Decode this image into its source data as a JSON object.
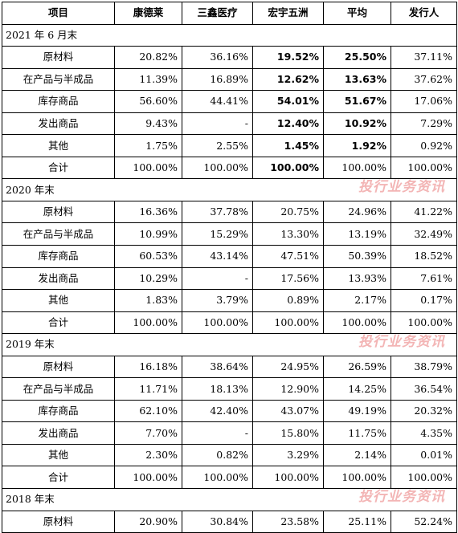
{
  "header": [
    "项目",
    "康德莱",
    "三鑫医疗",
    "宏宇五洲",
    "平均",
    "发行人"
  ],
  "watermark": "投行业务资讯",
  "sections": [
    {
      "title": "2021 年 6 月末",
      "watermark": false,
      "rows": [
        {
          "name": "原材料",
          "values": [
            "20.82%",
            "36.16%",
            "19.52%",
            "25.50%",
            "37.11%"
          ],
          "bold": [
            false,
            false,
            true,
            true,
            false
          ]
        },
        {
          "name": "在产品与半成品",
          "values": [
            "11.39%",
            "16.89%",
            "12.62%",
            "13.63%",
            "37.62%"
          ],
          "bold": [
            false,
            false,
            true,
            true,
            false
          ]
        },
        {
          "name": "库存商品",
          "values": [
            "56.60%",
            "44.41%",
            "54.01%",
            "51.67%",
            "17.06%"
          ],
          "bold": [
            false,
            false,
            true,
            true,
            false
          ]
        },
        {
          "name": "发出商品",
          "values": [
            "9.43%",
            "-",
            "12.40%",
            "10.92%",
            "7.29%"
          ],
          "bold": [
            false,
            false,
            true,
            true,
            false
          ]
        },
        {
          "name": "其他",
          "values": [
            "1.75%",
            "2.55%",
            "1.45%",
            "1.92%",
            "0.92%"
          ],
          "bold": [
            false,
            false,
            true,
            true,
            false
          ]
        },
        {
          "name": "合计",
          "values": [
            "100.00%",
            "100.00%",
            "100.00%",
            "100.00%",
            "100.00%"
          ],
          "bold": [
            false,
            false,
            true,
            false,
            false
          ]
        }
      ]
    },
    {
      "title": "2020 年末",
      "watermark": true,
      "rows": [
        {
          "name": "原材料",
          "values": [
            "16.36%",
            "37.78%",
            "20.75%",
            "24.96%",
            "41.22%"
          ]
        },
        {
          "name": "在产品与半成品",
          "values": [
            "10.99%",
            "15.29%",
            "13.30%",
            "13.19%",
            "32.49%"
          ]
        },
        {
          "name": "库存商品",
          "values": [
            "60.53%",
            "43.14%",
            "47.51%",
            "50.39%",
            "18.52%"
          ]
        },
        {
          "name": "发出商品",
          "values": [
            "10.29%",
            "-",
            "17.56%",
            "13.93%",
            "7.61%"
          ]
        },
        {
          "name": "其他",
          "values": [
            "1.83%",
            "3.79%",
            "0.89%",
            "2.17%",
            "0.17%"
          ]
        },
        {
          "name": "合计",
          "values": [
            "100.00%",
            "100.00%",
            "100.00%",
            "100.00%",
            "100.00%"
          ]
        }
      ]
    },
    {
      "title": "2019 年末",
      "watermark": true,
      "rows": [
        {
          "name": "原材料",
          "values": [
            "16.18%",
            "38.64%",
            "24.95%",
            "26.59%",
            "38.79%"
          ]
        },
        {
          "name": "在产品与半成品",
          "values": [
            "11.71%",
            "18.13%",
            "12.90%",
            "14.25%",
            "36.54%"
          ]
        },
        {
          "name": "库存商品",
          "values": [
            "62.10%",
            "42.40%",
            "43.07%",
            "49.19%",
            "20.32%"
          ]
        },
        {
          "name": "发出商品",
          "values": [
            "7.70%",
            "-",
            "15.80%",
            "11.75%",
            "4.35%"
          ]
        },
        {
          "name": "其他",
          "values": [
            "2.30%",
            "0.82%",
            "3.29%",
            "2.14%",
            "0.01%"
          ]
        },
        {
          "name": "合计",
          "values": [
            "100.00%",
            "100.00%",
            "100.00%",
            "100.00%",
            "100.00%"
          ]
        }
      ]
    },
    {
      "title": "2018 年末",
      "watermark": true,
      "rows": [
        {
          "name": "原材料",
          "values": [
            "20.90%",
            "30.84%",
            "23.58%",
            "25.11%",
            "52.24%"
          ]
        }
      ]
    }
  ]
}
